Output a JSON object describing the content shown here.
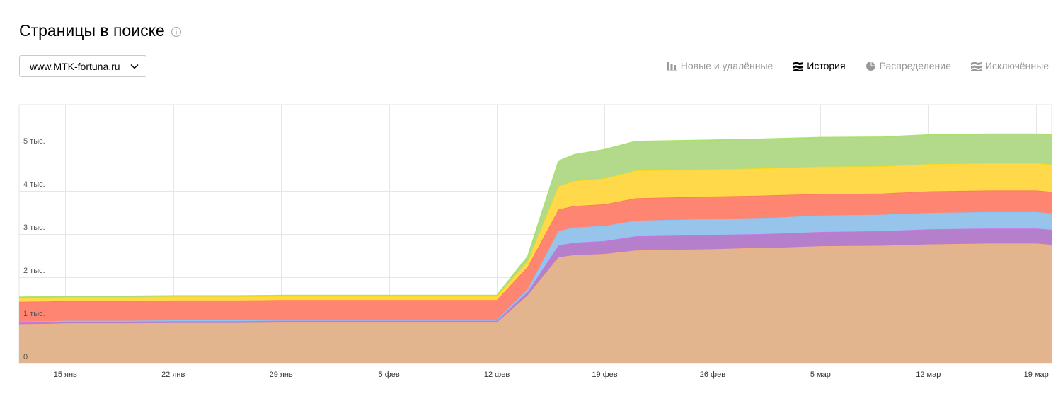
{
  "header": {
    "title": "Страницы в поиске",
    "info_icon": "info-icon"
  },
  "site_select": {
    "value": "www.MTK-fortuna.ru",
    "icon": "chevron-down-icon"
  },
  "tabs": [
    {
      "label": "Новые и удалённые",
      "icon": "bar-chart-icon",
      "active": false
    },
    {
      "label": "История",
      "icon": "stacked-area-icon",
      "active": true
    },
    {
      "label": "Распределение",
      "icon": "pie-chart-icon",
      "active": false
    },
    {
      "label": "Исключённые",
      "icon": "stacked-area-icon",
      "active": false
    }
  ],
  "chart_data": {
    "type": "area",
    "title": "",
    "xlabel": "",
    "ylabel": "",
    "stacked": true,
    "grid": true,
    "ylim": [
      0,
      6000
    ],
    "x_range": [
      "2018-01-12",
      "2018-03-20"
    ],
    "y_ticks": [
      {
        "value": 0,
        "label": "0"
      },
      {
        "value": 1000,
        "label": "1 тыс."
      },
      {
        "value": 2000,
        "label": "2 тыс."
      },
      {
        "value": 3000,
        "label": "3 тыс."
      },
      {
        "value": 4000,
        "label": "4 тыс."
      },
      {
        "value": 5000,
        "label": "5 тыс."
      }
    ],
    "x_ticks": [
      {
        "date": "2018-01-15",
        "label": "15 янв"
      },
      {
        "date": "2018-01-22",
        "label": "22 янв"
      },
      {
        "date": "2018-01-29",
        "label": "29 янв"
      },
      {
        "date": "2018-02-05",
        "label": "5 фев"
      },
      {
        "date": "2018-02-12",
        "label": "12 фев"
      },
      {
        "date": "2018-02-19",
        "label": "19 фев"
      },
      {
        "date": "2018-02-26",
        "label": "26 фев"
      },
      {
        "date": "2018-03-05",
        "label": "5 мар"
      },
      {
        "date": "2018-03-12",
        "label": "12 мар"
      },
      {
        "date": "2018-03-19",
        "label": "19 мар"
      }
    ],
    "x": [
      "2018-01-12",
      "2018-01-14",
      "2018-01-15",
      "2018-01-19",
      "2018-01-22",
      "2018-01-26",
      "2018-01-29",
      "2018-02-02",
      "2018-02-05",
      "2018-02-09",
      "2018-02-12",
      "2018-02-14",
      "2018-02-16",
      "2018-02-17",
      "2018-02-19",
      "2018-02-21",
      "2018-02-26",
      "2018-03-01",
      "2018-03-02",
      "2018-03-05",
      "2018-03-09",
      "2018-03-12",
      "2018-03-16",
      "2018-03-19",
      "2018-03-20"
    ],
    "series": [
      {
        "color": "#e2b58e",
        "values": [
          910,
          920,
          930,
          930,
          940,
          940,
          950,
          950,
          950,
          950,
          950,
          1580,
          2460,
          2510,
          2540,
          2620,
          2650,
          2680,
          2680,
          2720,
          2730,
          2760,
          2780,
          2780,
          2750
        ]
      },
      {
        "color": "#b57fcb",
        "values": [
          40,
          40,
          40,
          40,
          40,
          40,
          40,
          40,
          40,
          40,
          40,
          80,
          280,
          290,
          300,
          330,
          330,
          320,
          330,
          330,
          340,
          350,
          350,
          350,
          350
        ]
      },
      {
        "color": "#96c4ea",
        "values": [
          20,
          20,
          20,
          20,
          20,
          20,
          20,
          20,
          20,
          20,
          20,
          60,
          330,
          350,
          350,
          360,
          370,
          370,
          370,
          380,
          380,
          380,
          380,
          380,
          380
        ]
      },
      {
        "color": "#fd8571",
        "values": [
          460,
          460,
          460,
          460,
          460,
          460,
          460,
          460,
          460,
          460,
          460,
          520,
          500,
          500,
          500,
          520,
          520,
          520,
          520,
          500,
          490,
          500,
          500,
          500,
          500
        ]
      },
      {
        "color": "#ffd94a",
        "values": [
          90,
          90,
          90,
          90,
          90,
          90,
          90,
          90,
          90,
          90,
          90,
          130,
          540,
          580,
          600,
          640,
          630,
          630,
          630,
          630,
          630,
          630,
          630,
          630,
          630
        ]
      },
      {
        "color": "#b3d98b",
        "values": [
          20,
          20,
          20,
          20,
          20,
          20,
          20,
          20,
          20,
          20,
          20,
          110,
          580,
          610,
          670,
          680,
          680,
          680,
          680,
          680,
          680,
          680,
          680,
          680,
          700
        ]
      }
    ]
  }
}
